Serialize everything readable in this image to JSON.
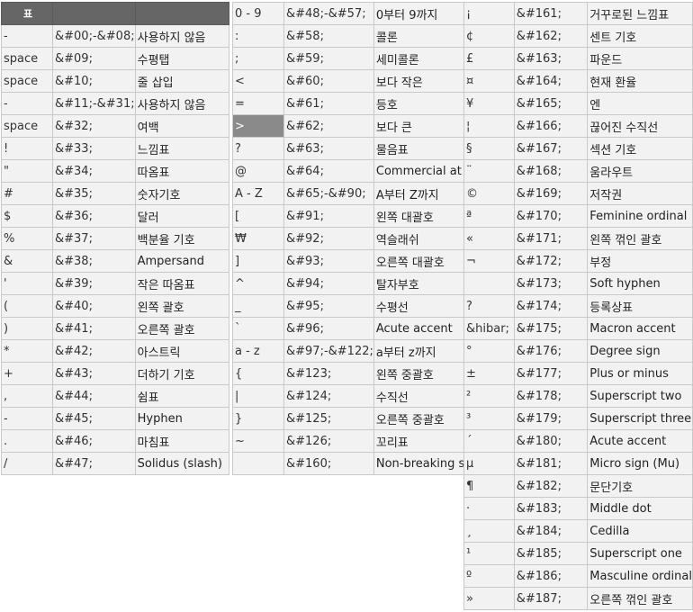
{
  "table1": {
    "header": [
      "표",
      "",
      ""
    ],
    "rows": [
      [
        "-",
        "&#00;-&#08;",
        "사용하지 않음"
      ],
      [
        "space",
        "&#09;",
        "수평탭"
      ],
      [
        "space",
        "&#10;",
        "줄 삽입"
      ],
      [
        "-",
        "&#11;-&#31;",
        "사용하지 않음"
      ],
      [
        "space",
        "&#32;",
        "여백"
      ],
      [
        "!",
        "&#33;",
        "느낌표"
      ],
      [
        "\"",
        "&#34;",
        "따옴표"
      ],
      [
        "#",
        "&#35;",
        "숫자기호"
      ],
      [
        "$",
        "&#36;",
        "달러"
      ],
      [
        "%",
        "&#37;",
        "백분율 기호"
      ],
      [
        "&",
        "&#38;",
        "Ampersand"
      ],
      [
        "'",
        "&#39;",
        "작은 따옴표"
      ],
      [
        "(",
        "&#40;",
        "왼쪽 괄호"
      ],
      [
        ")",
        "&#41;",
        "오른쪽 괄호"
      ],
      [
        "*",
        "&#42;",
        "아스트릭"
      ],
      [
        "+",
        "&#43;",
        "더하기 기호"
      ],
      [
        ",",
        "&#44;",
        "쉼표"
      ],
      [
        "-",
        "&#45;",
        "Hyphen"
      ],
      [
        ".",
        "&#46;",
        "마침표"
      ],
      [
        "/",
        "&#47;",
        "Solidus (slash)"
      ]
    ]
  },
  "table2": {
    "rows": [
      [
        "0 - 9",
        "&#48;-&#57;",
        "0부터 9까지"
      ],
      [
        ":",
        "&#58;",
        "콜론"
      ],
      [
        ";",
        "&#59;",
        "세미콜론"
      ],
      [
        "<",
        "&#60;",
        "보다 작은"
      ],
      [
        "=",
        "&#61;",
        "등호"
      ],
      [
        ">",
        "&#62;",
        "보다 큰"
      ],
      [
        "?",
        "&#63;",
        "물음표"
      ],
      [
        "@",
        "&#64;",
        "Commercial at"
      ],
      [
        "A - Z",
        "&#65;-&#90;",
        "A부터 Z까지"
      ],
      [
        "[",
        "&#91;",
        "왼쪽 대괄호"
      ],
      [
        "₩",
        "&#92;",
        "역슬래쉬"
      ],
      [
        "]",
        "&#93;",
        "오른쪽 대괄호"
      ],
      [
        "^",
        "&#94;",
        "탈자부호"
      ],
      [
        "_",
        "&#95;",
        "수평선"
      ],
      [
        "`",
        "&#96;",
        "Acute accent"
      ],
      [
        "a - z",
        "&#97;-&#122;",
        "a부터 z까지"
      ],
      [
        "{",
        "&#123;",
        "왼쪽 중괄호"
      ],
      [
        "|",
        "&#124;",
        "수직선"
      ],
      [
        "}",
        "&#125;",
        "오른쪽 중괄호"
      ],
      [
        "~",
        "&#126;",
        "꼬리표"
      ],
      [
        "",
        "&#160;",
        "Non-breaking s"
      ]
    ]
  },
  "table3": {
    "rows": [
      [
        "¡",
        "&#161;",
        "거꾸로된 느낌표"
      ],
      [
        "¢",
        "&#162;",
        "센트 기호"
      ],
      [
        "£",
        "&#163;",
        "파운드"
      ],
      [
        "¤",
        "&#164;",
        "현재 환율"
      ],
      [
        "¥",
        "&#165;",
        "엔"
      ],
      [
        "¦",
        "&#166;",
        "끊어진 수직선"
      ],
      [
        "§",
        "&#167;",
        "섹션 기호"
      ],
      [
        "¨",
        "&#168;",
        "움라우트"
      ],
      [
        "©",
        "&#169;",
        "저작권"
      ],
      [
        "ª",
        "&#170;",
        "Feminine ordinal"
      ],
      [
        "«",
        "&#171;",
        "왼쪽 꺾인 괄호"
      ],
      [
        "¬",
        "&#172;",
        "부정"
      ],
      [
        "",
        "&#173;",
        "Soft hyphen"
      ],
      [
        "?",
        "&#174;",
        "등록상표"
      ],
      [
        "&hibar;",
        "&#175;",
        "Macron accent"
      ],
      [
        "°",
        "&#176;",
        "Degree sign"
      ],
      [
        "±",
        "&#177;",
        "Plus or minus"
      ],
      [
        "²",
        "&#178;",
        "Superscript two"
      ],
      [
        "³",
        "&#179;",
        "Superscript three"
      ],
      [
        "´",
        "&#180;",
        "Acute accent"
      ],
      [
        "µ",
        "&#181;",
        "Micro sign (Mu)"
      ],
      [
        "¶",
        "&#182;",
        "문단기호"
      ],
      [
        "·",
        "&#183;",
        "Middle dot"
      ],
      [
        "¸",
        "&#184;",
        "Cedilla"
      ],
      [
        "¹",
        "&#185;",
        "Superscript one"
      ],
      [
        "º",
        "&#186;",
        "Masculine ordinal"
      ],
      [
        "»",
        "&#187;",
        "오른쪽 꺾인 괄호"
      ]
    ]
  }
}
